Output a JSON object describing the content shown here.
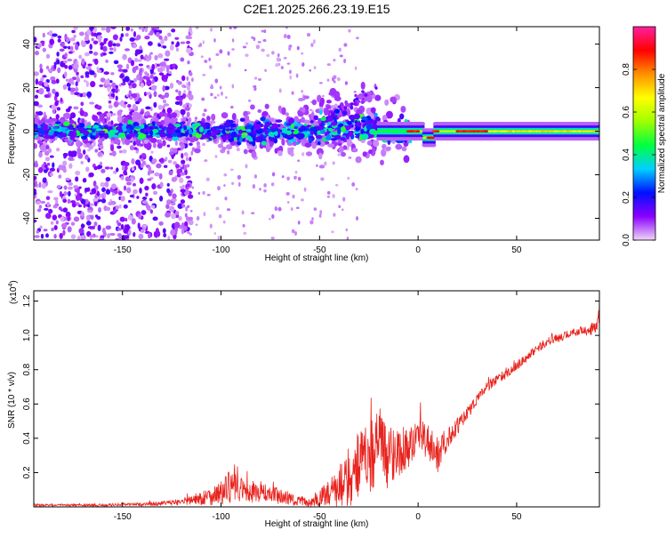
{
  "title": "C2E1.2025.266.23.19.E15",
  "chart_data": [
    {
      "type": "heatmap",
      "xlabel": "Height of straight line (km)",
      "ylabel": "Frequency (Hz)",
      "xlim": [
        -195,
        92
      ],
      "ylim": [
        -50,
        48
      ],
      "xticks": [
        -150,
        -100,
        -50,
        0,
        50
      ],
      "yticks": [
        -40,
        -20,
        0,
        20,
        40
      ],
      "colorbar": {
        "label": "Normalized spectral amplitude",
        "range": [
          0,
          1
        ],
        "ticks": [
          0.0,
          0.2,
          0.4,
          0.6,
          0.8
        ],
        "tick_labels": [
          "0.0",
          "0.2",
          "0.4",
          "0.6",
          "0.8"
        ],
        "colors": [
          "#f0d6f5",
          "#8a00ff",
          "#0010ff",
          "#00d0ff",
          "#00ff40",
          "#a0ff00",
          "#ffff00",
          "#ff9000",
          "#ff0000",
          "#ff20a0"
        ]
      },
      "features": {
        "diffuse_region_km": [
          -195,
          -120
        ],
        "main_band_freq_hz": 0,
        "narrow_band_start_km": -5,
        "strong_segments_km": [
          [
            -5,
            0
          ],
          [
            5,
            10
          ],
          [
            20,
            35
          ]
        ]
      }
    },
    {
      "type": "line",
      "xlabel": "Height of straight line (km)",
      "ylabel": "SNR (10 * v/v)",
      "y_multiplier_label": "(x10",
      "y_multiplier_exponent": "4",
      "y_multiplier_close": ")",
      "xlim": [
        -195,
        92
      ],
      "ylim": [
        0,
        1.26
      ],
      "xticks": [
        -150,
        -100,
        -50,
        0,
        50
      ],
      "yticks": [
        0.2,
        0.4,
        0.6,
        0.8,
        1.0,
        1.2
      ],
      "ytick_labels": [
        "0.2",
        "0.4",
        "0.6",
        "0.8",
        "1.0",
        "1.2"
      ],
      "color": "#e8221c",
      "series": [
        {
          "name": "SNR",
          "x": [
            -195,
            -175,
            -160,
            -150,
            -140,
            -130,
            -120,
            -110,
            -100,
            -95,
            -90,
            -85,
            -80,
            -75,
            -70,
            -65,
            -60,
            -55,
            -50,
            -45,
            -40,
            -35,
            -30,
            -25,
            -20,
            -15,
            -10,
            -5,
            0,
            5,
            10,
            15,
            20,
            25,
            30,
            35,
            40,
            45,
            50,
            55,
            60,
            65,
            70,
            75,
            80,
            85,
            90,
            92
          ],
          "y": [
            0.01,
            0.01,
            0.01,
            0.015,
            0.015,
            0.02,
            0.03,
            0.05,
            0.08,
            0.12,
            0.1,
            0.08,
            0.09,
            0.07,
            0.06,
            0.05,
            0.03,
            0.03,
            0.05,
            0.08,
            0.12,
            0.18,
            0.25,
            0.3,
            0.35,
            0.3,
            0.32,
            0.35,
            0.42,
            0.38,
            0.3,
            0.4,
            0.47,
            0.55,
            0.63,
            0.7,
            0.74,
            0.78,
            0.82,
            0.87,
            0.92,
            0.96,
            0.98,
            1.0,
            1.02,
            1.03,
            1.04,
            1.15
          ],
          "noise_amplitude": [
            0.008,
            0.008,
            0.008,
            0.008,
            0.01,
            0.012,
            0.02,
            0.04,
            0.07,
            0.1,
            0.07,
            0.06,
            0.06,
            0.05,
            0.05,
            0.04,
            0.03,
            0.03,
            0.05,
            0.08,
            0.12,
            0.18,
            0.2,
            0.22,
            0.22,
            0.2,
            0.14,
            0.12,
            0.1,
            0.1,
            0.1,
            0.06,
            0.05,
            0.04,
            0.03,
            0.03,
            0.03,
            0.025,
            0.025,
            0.025,
            0.025,
            0.025,
            0.025,
            0.025,
            0.025,
            0.03,
            0.04,
            0.12
          ]
        }
      ]
    }
  ]
}
